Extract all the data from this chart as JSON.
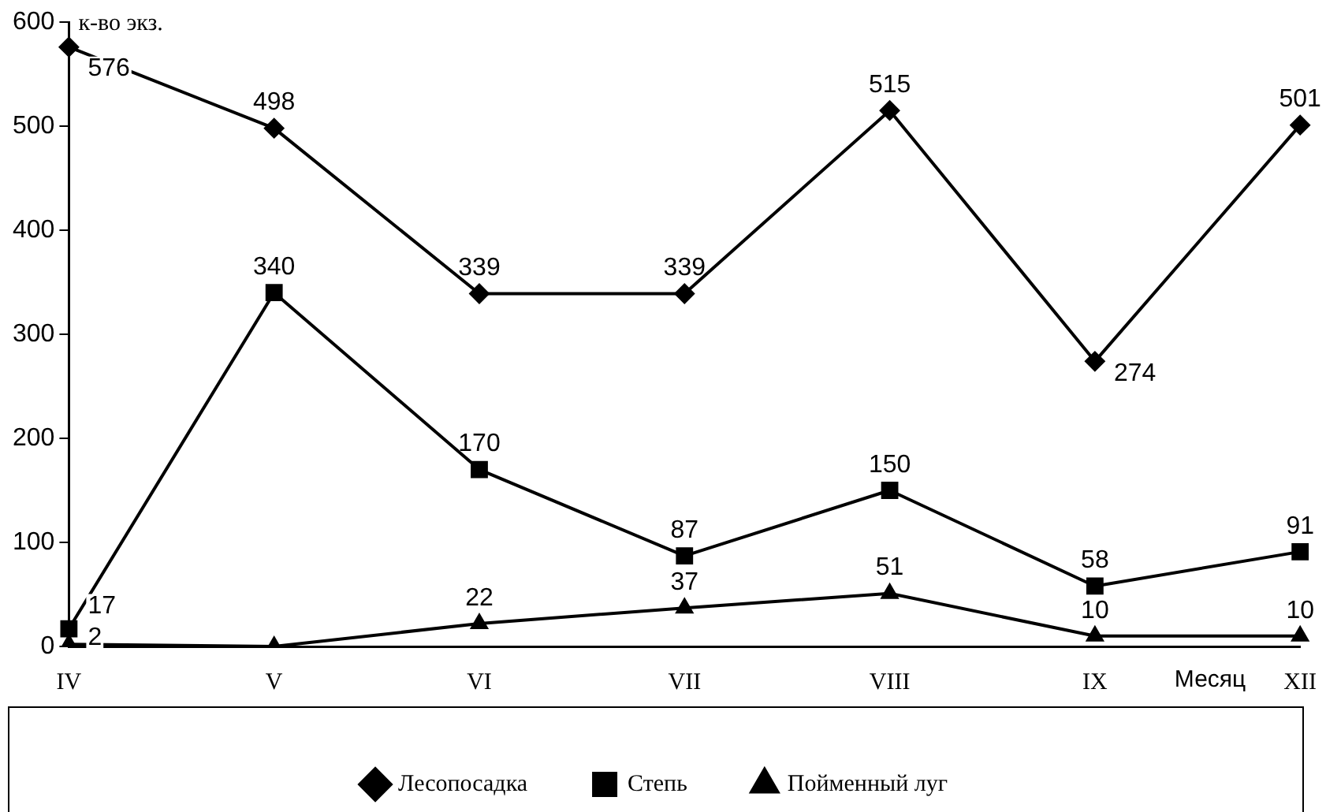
{
  "chart_data": {
    "type": "line",
    "xlabel": "Месяц",
    "ylabel": "к-во экз.",
    "categories": [
      "IV",
      "V",
      "VI",
      "VII",
      "VIII",
      "IX",
      "XII"
    ],
    "series": [
      {
        "name": "Лесопосадка",
        "color": "#000000",
        "marker": "diamond",
        "values": [
          576,
          498,
          339,
          339,
          515,
          274,
          501
        ],
        "value_labels": [
          "576",
          "498",
          "339",
          "339",
          "515",
          "274",
          "501"
        ]
      },
      {
        "name": "Степь",
        "color": "#000000",
        "marker": "square",
        "values": [
          17,
          340,
          170,
          87,
          150,
          58,
          91
        ],
        "value_labels": [
          "17",
          "340",
          "170",
          "87",
          "150",
          "58",
          "91"
        ]
      },
      {
        "name": "Пойменный луг",
        "color": "#000000",
        "marker": "triangle",
        "values": [
          2,
          0,
          22,
          37,
          51,
          10,
          10
        ],
        "value_labels": [
          "2",
          null,
          "22",
          "37",
          "51",
          "10",
          "10"
        ]
      }
    ],
    "ylim": [
      0,
      600
    ],
    "yticks": [
      0,
      100,
      200,
      300,
      400,
      500,
      600
    ],
    "grid": false,
    "legend": "bottom",
    "line_style": "solid"
  }
}
